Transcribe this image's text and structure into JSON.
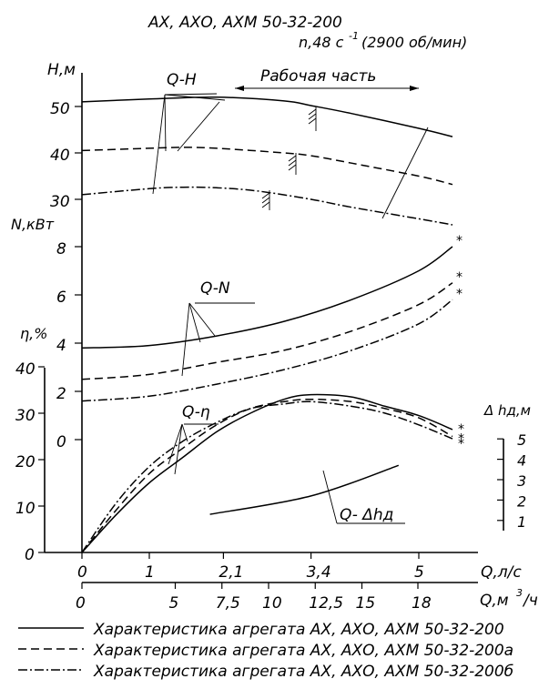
{
  "chart_data": {
    "type": "line",
    "title_line1": "АХ, АХО, АХМ 50-32-200",
    "title_line2": "n,48 c",
    "title_sup": "-1",
    "title_rpm": "(2900 об/мин)",
    "x_axis_ls": {
      "label": "Q,л/с",
      "ticks": [
        "0",
        "1",
        "2,1",
        "3,4",
        "5"
      ],
      "values": [
        0,
        1,
        2.1,
        3.4,
        5
      ]
    },
    "x_axis_m3h": {
      "label": "Q,м³/ч",
      "label_base": "Q,м",
      "label_sup": "3",
      "label_tail": "/ч",
      "ticks": [
        "0",
        "5",
        "7,5",
        "10",
        "12,5",
        "15",
        "18"
      ],
      "values": [
        0,
        5,
        7.5,
        10,
        12.5,
        15,
        18
      ]
    },
    "axis_H": {
      "label": "H,м",
      "ticks": [
        "30",
        "40",
        "50"
      ],
      "values": [
        30,
        40,
        50
      ]
    },
    "axis_N": {
      "label": "N,кВт",
      "ticks": [
        "0",
        "2",
        "4",
        "6",
        "8"
      ],
      "values": [
        0,
        2,
        4,
        6,
        8
      ]
    },
    "axis_eta": {
      "label": "η,%",
      "ticks": [
        "0",
        "10",
        "20",
        "30",
        "40"
      ],
      "values": [
        0,
        10,
        20,
        30,
        40
      ]
    },
    "axis_dh": {
      "label": "Δ hд,м",
      "ticks": [
        "1",
        "2",
        "3",
        "4",
        "5"
      ],
      "values": [
        1,
        2,
        3,
        4,
        5
      ]
    },
    "annotations": {
      "qh": "Q-H",
      "qn": "Q-N",
      "qeta": "Q-η",
      "qdh": "Q- Δhд",
      "work": "Рабочая часть",
      "star": "*"
    },
    "series": [
      {
        "name": "Характеристика агрегата АХ, АХО, АХМ 50-32-200",
        "dash": "",
        "H": [
          [
            0,
            51
          ],
          [
            1,
            51.6
          ],
          [
            2,
            52
          ],
          [
            3,
            51.2
          ],
          [
            3.4,
            50.2
          ],
          [
            4,
            48.5
          ],
          [
            5,
            45.3
          ],
          [
            5.5,
            43.5
          ]
        ],
        "N": [
          [
            0,
            3.8
          ],
          [
            1,
            3.9
          ],
          [
            2,
            4.3
          ],
          [
            3,
            4.9
          ],
          [
            4,
            5.8
          ],
          [
            5,
            7
          ],
          [
            5.5,
            8
          ]
        ],
        "eta": [
          [
            0,
            0
          ],
          [
            0.5,
            8
          ],
          [
            1,
            15
          ],
          [
            1.5,
            20.5
          ],
          [
            2,
            26
          ],
          [
            2.5,
            30
          ],
          [
            3,
            33
          ],
          [
            3.4,
            34
          ],
          [
            4,
            33.5
          ],
          [
            4.5,
            31.5
          ],
          [
            5,
            29.5
          ],
          [
            5.5,
            26.5
          ]
        ]
      },
      {
        "name": "Характеристика агрегата АХ, АХО, АХМ 50-32-200а",
        "dash": "9,5",
        "H": [
          [
            0,
            40.5
          ],
          [
            1,
            41
          ],
          [
            1.5,
            41.2
          ],
          [
            2,
            41
          ],
          [
            3,
            40
          ],
          [
            3.4,
            39.4
          ],
          [
            4,
            37.8
          ],
          [
            5,
            35
          ],
          [
            5.5,
            33.2
          ]
        ],
        "N": [
          [
            0,
            2.5
          ],
          [
            1,
            2.7
          ],
          [
            2,
            3.2
          ],
          [
            3,
            3.7
          ],
          [
            4,
            4.5
          ],
          [
            5,
            5.6
          ],
          [
            5.5,
            6.5
          ]
        ],
        "eta": [
          [
            0,
            0
          ],
          [
            0.5,
            9
          ],
          [
            1,
            17
          ],
          [
            1.5,
            22.5
          ],
          [
            2,
            27.5
          ],
          [
            2.5,
            31
          ],
          [
            3,
            32.5
          ],
          [
            3.4,
            33
          ],
          [
            4,
            32.5
          ],
          [
            4.5,
            31
          ],
          [
            5,
            29
          ],
          [
            5.5,
            25
          ]
        ]
      },
      {
        "name": "Характеристика агрегата АХ, АХО, АХМ 50-32-200б",
        "dash": "10,3,2,3",
        "H": [
          [
            0,
            31
          ],
          [
            1,
            32.3
          ],
          [
            1.5,
            32.6
          ],
          [
            2,
            32.5
          ],
          [
            2.6,
            31.8
          ],
          [
            3.4,
            30
          ],
          [
            4,
            28.3
          ],
          [
            5,
            25.8
          ],
          [
            5.5,
            24.5
          ]
        ],
        "N": [
          [
            0,
            1.6
          ],
          [
            1,
            1.8
          ],
          [
            2,
            2.3
          ],
          [
            3,
            2.9
          ],
          [
            4,
            3.7
          ],
          [
            5,
            4.8
          ],
          [
            5.5,
            5.8
          ]
        ],
        "eta": [
          [
            0,
            0
          ],
          [
            0.5,
            10.5
          ],
          [
            1,
            18.5
          ],
          [
            1.5,
            24
          ],
          [
            2,
            28
          ],
          [
            2.5,
            31
          ],
          [
            3,
            32
          ],
          [
            3.4,
            32.5
          ],
          [
            4,
            31.5
          ],
          [
            4.5,
            30
          ],
          [
            5,
            27.5
          ],
          [
            5.5,
            24.5
          ]
        ]
      }
    ],
    "npsh": [
      [
        1.9,
        1.3
      ],
      [
        3.4,
        2.2
      ],
      [
        4.7,
        3.7
      ]
    ],
    "work_range": [
      3.4,
      5.0
    ],
    "grid": false,
    "legend": "bottom"
  }
}
